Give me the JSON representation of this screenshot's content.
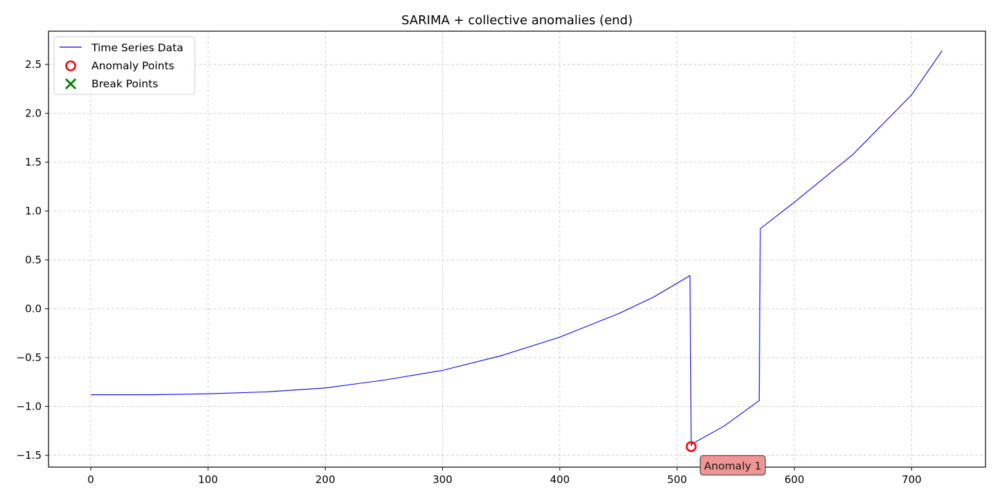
{
  "chart_data": {
    "type": "line",
    "title": "SARIMA + collective anomalies (end)",
    "xlabel": "",
    "ylabel": "",
    "xlim": [
      -36,
      763
    ],
    "ylim": [
      -1.62,
      2.84
    ],
    "x_ticks": [
      0,
      100,
      200,
      300,
      400,
      500,
      600,
      700
    ],
    "x_tick_labels": [
      "0",
      "100",
      "200",
      "300",
      "400",
      "500",
      "600",
      "700"
    ],
    "y_ticks": [
      -1.5,
      -1.0,
      -0.5,
      0.0,
      0.5,
      1.0,
      1.5,
      2.0,
      2.5
    ],
    "y_tick_labels": [
      "−1.5",
      "−1.0",
      "−0.5",
      "0.0",
      "0.5",
      "1.0",
      "1.5",
      "2.0",
      "2.5"
    ],
    "grid": true,
    "legend_position": "top-left",
    "series": [
      {
        "name": "Time Series Data",
        "color": "#0000ff",
        "x": [
          0,
          50,
          100,
          150,
          200,
          250,
          300,
          350,
          400,
          450,
          480,
          511,
          512,
          513,
          540,
          570,
          571,
          572,
          600,
          650,
          700,
          726
        ],
        "y": [
          -0.88,
          -0.88,
          -0.87,
          -0.85,
          -0.81,
          -0.73,
          -0.63,
          -0.48,
          -0.29,
          -0.05,
          0.12,
          0.34,
          -1.4,
          -1.38,
          -1.2,
          -0.94,
          0.82,
          0.83,
          1.09,
          1.58,
          2.19,
          2.64
        ]
      }
    ],
    "anomaly_points": {
      "name": "Anomaly Points",
      "color": "#ff0000",
      "x": [
        512
      ],
      "y": [
        -1.41
      ]
    },
    "break_points": {
      "name": "Break Points",
      "color": "#008000",
      "x": [],
      "y": []
    },
    "annotations": [
      {
        "text": "Anomaly 1",
        "x": 512,
        "y": -1.41,
        "background": "#f09595"
      }
    ]
  }
}
